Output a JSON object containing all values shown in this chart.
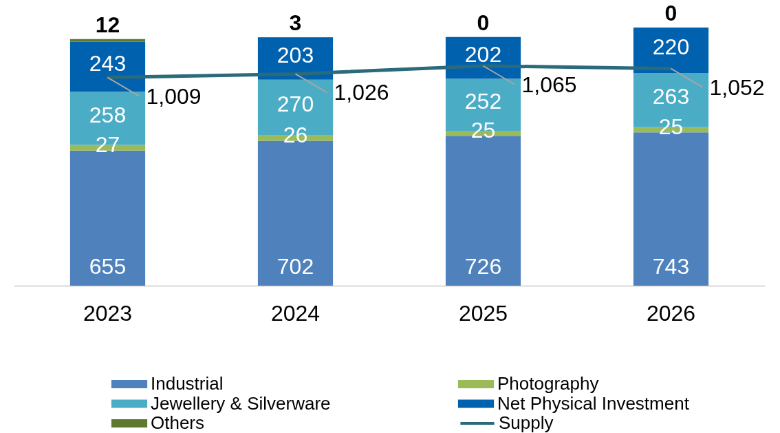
{
  "chart_data": {
    "type": "bar",
    "stacked": true,
    "data_labels": true,
    "legend": "bottom",
    "tick_labels": "x",
    "categories": [
      "2023",
      "2024",
      "2025",
      "2026"
    ],
    "series": [
      {
        "name": "Industrial",
        "color": "#4f81bd",
        "values": [
          655,
          702,
          726,
          743
        ]
      },
      {
        "name": "Photography",
        "color": "#9bbb59",
        "values": [
          27,
          26,
          25,
          25
        ]
      },
      {
        "name": "Jewellery & Silverware",
        "color": "#4bacc6",
        "values": [
          258,
          270,
          252,
          263
        ]
      },
      {
        "name": "Net Physical Investment",
        "color": "#0062ae",
        "values": [
          243,
          203,
          202,
          220
        ]
      },
      {
        "name": "Others",
        "color": "#5f7a30",
        "values": [
          12,
          3,
          0,
          0
        ]
      },
      {
        "name": "Supply",
        "type": "line",
        "color": "#2a6b7b",
        "values": [
          1009,
          1026,
          1065,
          1052
        ],
        "value_labels": [
          "1,009",
          "1,026",
          "1,065",
          "1,052"
        ]
      }
    ]
  }
}
